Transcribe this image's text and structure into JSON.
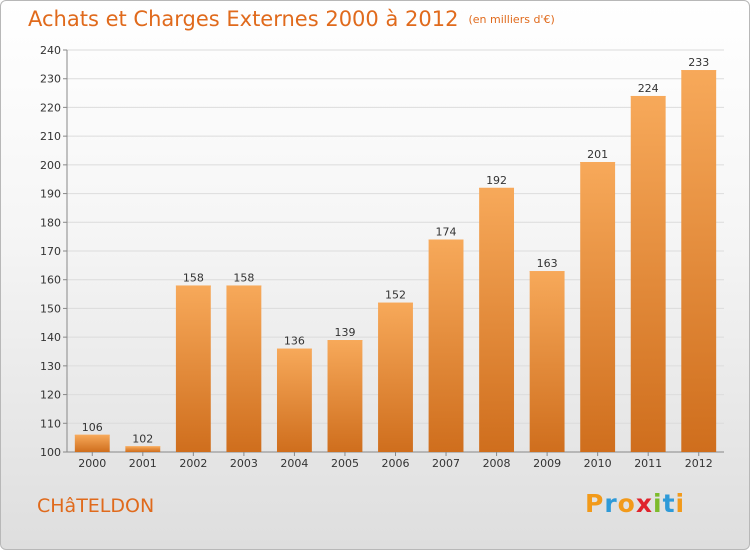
{
  "header": {
    "title": "Achats et Charges Externes 2000 à 2012",
    "unit": "(en milliers d'€)"
  },
  "footer": {
    "commune": "CHâTELDON",
    "logo_letters": [
      {
        "ch": "P",
        "color": "#f29a1a"
      },
      {
        "ch": "r",
        "color": "#2e9ad8"
      },
      {
        "ch": "o",
        "color": "#f29a1a"
      },
      {
        "ch": "x",
        "color": "#e0232c"
      },
      {
        "ch": "i",
        "color": "#7dbb2b"
      },
      {
        "ch": "t",
        "color": "#2e9ad8"
      },
      {
        "ch": "i",
        "color": "#f29a1a"
      }
    ]
  },
  "colors": {
    "accent": "#e06a1c",
    "bar_top": "#f7a95a",
    "bar_bottom": "#cf6e1d",
    "grid": "#dcdcdc",
    "axis_text": "#333333"
  },
  "chart_data": {
    "type": "bar",
    "title": "Achats et Charges Externes 2000 à 2012",
    "categories": [
      "2000",
      "2001",
      "2002",
      "2003",
      "2004",
      "2005",
      "2006",
      "2007",
      "2008",
      "2009",
      "2010",
      "2011",
      "2012"
    ],
    "values": [
      106,
      102,
      158,
      158,
      136,
      139,
      152,
      174,
      192,
      163,
      201,
      224,
      233
    ],
    "ylim": [
      100,
      240
    ],
    "yticks": [
      100,
      110,
      120,
      130,
      140,
      150,
      160,
      170,
      180,
      190,
      200,
      210,
      220,
      230,
      240
    ],
    "grid": true,
    "data_labels": true
  }
}
